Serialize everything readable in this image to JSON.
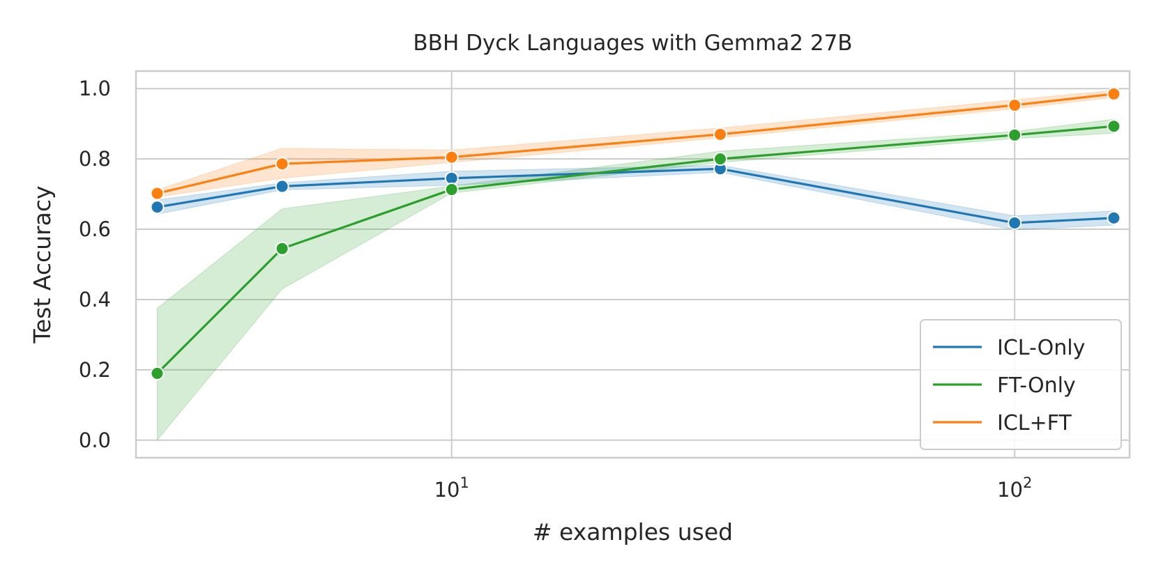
{
  "chart_data": {
    "type": "line",
    "title": "BBH Dyck Languages with Gemma2 27B",
    "xlabel": "# examples used",
    "ylabel": "Test Accuracy",
    "xscale": "log",
    "xlim": [
      2.75,
      160
    ],
    "ylim": [
      -0.05,
      1.05
    ],
    "grid": true,
    "legend_position": "lower-right",
    "x": [
      3,
      5,
      10,
      30,
      100,
      150
    ],
    "x_ticks": [
      {
        "value": 10,
        "base": "10",
        "exp": "1"
      },
      {
        "value": 100,
        "base": "10",
        "exp": "2"
      }
    ],
    "y_ticks": [
      {
        "value": 0.0,
        "label": "0.0"
      },
      {
        "value": 0.2,
        "label": "0.2"
      },
      {
        "value": 0.4,
        "label": "0.4"
      },
      {
        "value": 0.6,
        "label": "0.6"
      },
      {
        "value": 0.8,
        "label": "0.8"
      },
      {
        "value": 1.0,
        "label": "1.0"
      }
    ],
    "series": [
      {
        "name": "ICL-Only",
        "color": "#1f77b4",
        "values": [
          0.663,
          0.722,
          0.745,
          0.772,
          0.618,
          0.632
        ],
        "lower": [
          0.643,
          0.712,
          0.725,
          0.762,
          0.598,
          0.612
        ],
        "upper": [
          0.683,
          0.732,
          0.765,
          0.782,
          0.638,
          0.652
        ]
      },
      {
        "name": "FT-Only",
        "color": "#2ca02c",
        "values": [
          0.19,
          0.545,
          0.713,
          0.8,
          0.868,
          0.893
        ],
        "lower": [
          0.0,
          0.43,
          0.703,
          0.79,
          0.858,
          0.873
        ],
        "upper": [
          0.375,
          0.658,
          0.723,
          0.822,
          0.878,
          0.913
        ]
      },
      {
        "name": "ICL+FT",
        "color": "#ff7f0e",
        "values": [
          0.702,
          0.786,
          0.805,
          0.87,
          0.953,
          0.985
        ],
        "lower": [
          0.692,
          0.745,
          0.79,
          0.86,
          0.943,
          0.975
        ],
        "upper": [
          0.712,
          0.83,
          0.825,
          0.888,
          0.968,
          0.995
        ]
      }
    ]
  }
}
